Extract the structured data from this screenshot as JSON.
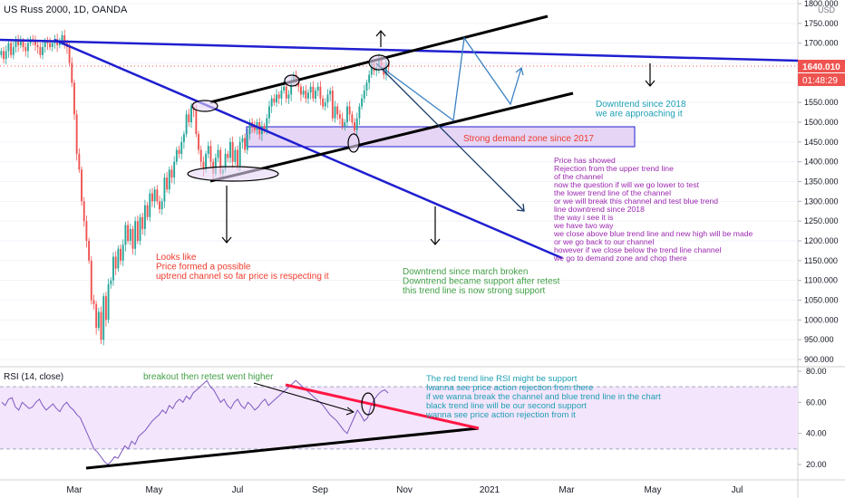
{
  "header": {
    "symbol_title": "US Russ 2000, 1D, OANDA",
    "currency": "USD"
  },
  "price_badges": {
    "last_price": "1640.010",
    "countdown": "01:48:29",
    "badge_color": "#ef5350"
  },
  "rsi_pane": {
    "title": "RSI (14, close)"
  },
  "annotations": {
    "downtrend_2018": "Downtrend since 2018\nwe are approaching it",
    "demand_zone": "Strong demand zone since 2017",
    "price_showed": "Price has showed\nRejection from the upper trend line\nof the channel\nnow the question if will we go lower to test\nthe lower trend line of the channel\nor we will break this channel and test blue trend\nline downtrend since 2018\nthe way i see it is\nwe have two way\nwe close above blue trend line and new high will be made\nor we go back to our channel\nhowever if we close below the trend line channel\nwe go to demand zone and chop there",
    "looks_like": "Looks like\nPrice formed a possible\nuptrend channel so far price is respecting it",
    "downtrend_march": "Downtrend since march broken\nDowntrend became support after retest\nthis trend line is now strong support",
    "breakout": "breakout then retest went higher",
    "rsi_note": "The red trend line RSI might be support\nIwanna see price action rejection from there\nif we wanna break the channel and blue trend line in the chart\nblack trend line will be our second support\nwanna see price action rejection from it"
  },
  "colors": {
    "up_candle": "#26a69a",
    "down_candle": "#ef5350",
    "blue_trend": "#1f1fd0",
    "black_trend": "#000000",
    "projection": "#3b82c4",
    "demand_zone_fill": "#e6d5f5",
    "rsi_line": "#7e57c2",
    "rsi_band": "#f3e5fb",
    "rsi_red_trend": "#ff1744",
    "text_purple": "#9c27b0",
    "text_red": "#ef3b2c",
    "text_green": "#43a047",
    "text_teal": "#1e9fb4"
  },
  "chart_data": [
    {
      "type": "candlestick",
      "title": "US Russ 2000, 1D, OANDA",
      "x_labels": [
        "Mar",
        "May",
        "Jul",
        "Sep",
        "Nov",
        "2021",
        "Mar",
        "May",
        "Jul"
      ],
      "y_ticks": [
        900,
        950,
        1000,
        1050,
        1100,
        1150,
        1200,
        1250,
        1300,
        1350,
        1400,
        1450,
        1500,
        1550,
        1600,
        1650,
        1700,
        1750,
        1800
      ],
      "y_tick_labels": [
        "900.000",
        "950.000",
        "1000.000",
        "1050.000",
        "1100.000",
        "1150.000",
        "1200.000",
        "1250.000",
        "1300.000",
        "1350.000",
        "1400.000",
        "1450.000",
        "1500.000",
        "1550.000",
        "1600.000",
        "1650.000",
        "1700.000",
        "1750.000",
        "1800.000"
      ],
      "ylim": [
        885,
        1810
      ],
      "last_price": 1640.01,
      "closes": [
        1680,
        1660,
        1680,
        1700,
        1670,
        1690,
        1710,
        1695,
        1705,
        1690,
        1680,
        1700,
        1710,
        1705,
        1695,
        1690,
        1670,
        1690,
        1705,
        1700,
        1690,
        1700,
        1710,
        1695,
        1705,
        1720,
        1700,
        1690,
        1650,
        1600,
        1520,
        1420,
        1380,
        1300,
        1250,
        1200,
        1150,
        1050,
        1040,
        980,
        1020,
        950,
        1060,
        1000,
        1090,
        1100,
        1160,
        1130,
        1180,
        1150,
        1190,
        1240,
        1200,
        1230,
        1180,
        1250,
        1200,
        1260,
        1230,
        1290,
        1260,
        1320,
        1300,
        1330,
        1300,
        1280,
        1300,
        1360,
        1330,
        1380,
        1360,
        1400,
        1430,
        1420,
        1450,
        1470,
        1520,
        1500,
        1540,
        1530,
        1470,
        1430,
        1400,
        1380,
        1420,
        1440,
        1400,
        1370,
        1410,
        1430,
        1370,
        1380,
        1420,
        1410,
        1450,
        1400,
        1430,
        1390,
        1450,
        1460,
        1430,
        1470,
        1500,
        1490,
        1480,
        1500,
        1470,
        1490,
        1480,
        1510,
        1540,
        1560,
        1550,
        1570,
        1560,
        1580,
        1590,
        1560,
        1570,
        1600,
        1620,
        1600,
        1590,
        1570,
        1580,
        1560,
        1575,
        1590,
        1560,
        1580,
        1590,
        1560,
        1540,
        1550,
        1570,
        1580,
        1510,
        1540,
        1520,
        1510,
        1490,
        1500,
        1540,
        1520,
        1500,
        1480,
        1510,
        1540,
        1560,
        1580,
        1600,
        1620,
        1650,
        1630,
        1640,
        1660,
        1640,
        1620,
        1650,
        1640
      ]
    },
    {
      "type": "line",
      "title": "RSI (14, close)",
      "y_ticks": [
        20,
        40,
        60,
        80
      ],
      "y_tick_labels": [
        "20.00",
        "40.00",
        "60.00",
        "80.00"
      ],
      "ylim": [
        10,
        82
      ],
      "band": [
        30,
        70
      ],
      "values": [
        60,
        58,
        62,
        63,
        57,
        55,
        60,
        58,
        56,
        57,
        60,
        62,
        58,
        55,
        57,
        59,
        56,
        54,
        58,
        60,
        57,
        55,
        52,
        50,
        45,
        40,
        35,
        30,
        28,
        25,
        22,
        20,
        22,
        25,
        24,
        28,
        32,
        30,
        35,
        33,
        38,
        40,
        42,
        45,
        48,
        50,
        52,
        55,
        53,
        58,
        56,
        60,
        62,
        60,
        64,
        62,
        66,
        68,
        70,
        72,
        74,
        70,
        68,
        64,
        60,
        62,
        58,
        56,
        60,
        62,
        58,
        56,
        60,
        58,
        55,
        57,
        60,
        62,
        58,
        60,
        62,
        64,
        66,
        68,
        70,
        72,
        74,
        72,
        70,
        68,
        66,
        64,
        62,
        60,
        58,
        55,
        52,
        50,
        48,
        45,
        42,
        40,
        45,
        50,
        55,
        52,
        48,
        50,
        58,
        62,
        65,
        67,
        68,
        66
      ]
    }
  ]
}
